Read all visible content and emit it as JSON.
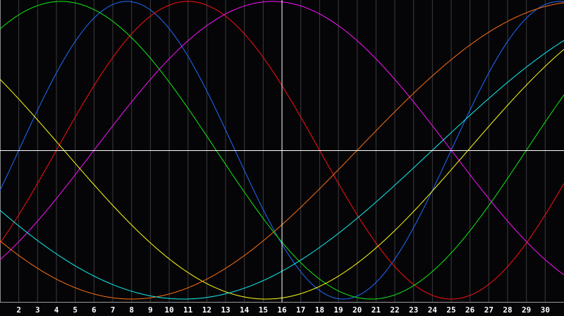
{
  "chart_data": {
    "type": "line",
    "title": "",
    "xlabel": "",
    "ylabel": "",
    "x_range": [
      1,
      31
    ],
    "y_range": [
      -1,
      1
    ],
    "x_tick_labels": [
      "2",
      "3",
      "4",
      "5",
      "6",
      "7",
      "8",
      "9",
      "10",
      "11",
      "12",
      "13",
      "14",
      "15",
      "16",
      "17",
      "18",
      "19",
      "20",
      "21",
      "22",
      "23",
      "24",
      "25",
      "26",
      "27",
      "28",
      "29",
      "30"
    ],
    "grid": true,
    "highlight_day": 16,
    "zero_line": true,
    "series": [
      {
        "curve": "sine",
        "period_days": 23,
        "rising_zero_day": 2,
        "color": "#1e6cff"
      },
      {
        "curve": "sine",
        "period_days": 28,
        "rising_zero_day": 4,
        "color": "#ff1010"
      },
      {
        "curve": "sine",
        "period_days": 33,
        "rising_zero_day": 29,
        "color": "#10ee10"
      },
      {
        "curve": "sine",
        "period_days": 38,
        "rising_zero_day": 6,
        "color": "#ff10ff"
      },
      {
        "curve": "sine",
        "period_days": 43,
        "rising_zero_day": 25.9,
        "color": "#ffff10"
      },
      {
        "curve": "sine",
        "period_days": 48,
        "rising_zero_day": 20,
        "color": "#ff7010"
      },
      {
        "curve": "sine",
        "period_days": 53,
        "rising_zero_day": 24,
        "color": "#10f0f0"
      }
    ]
  }
}
